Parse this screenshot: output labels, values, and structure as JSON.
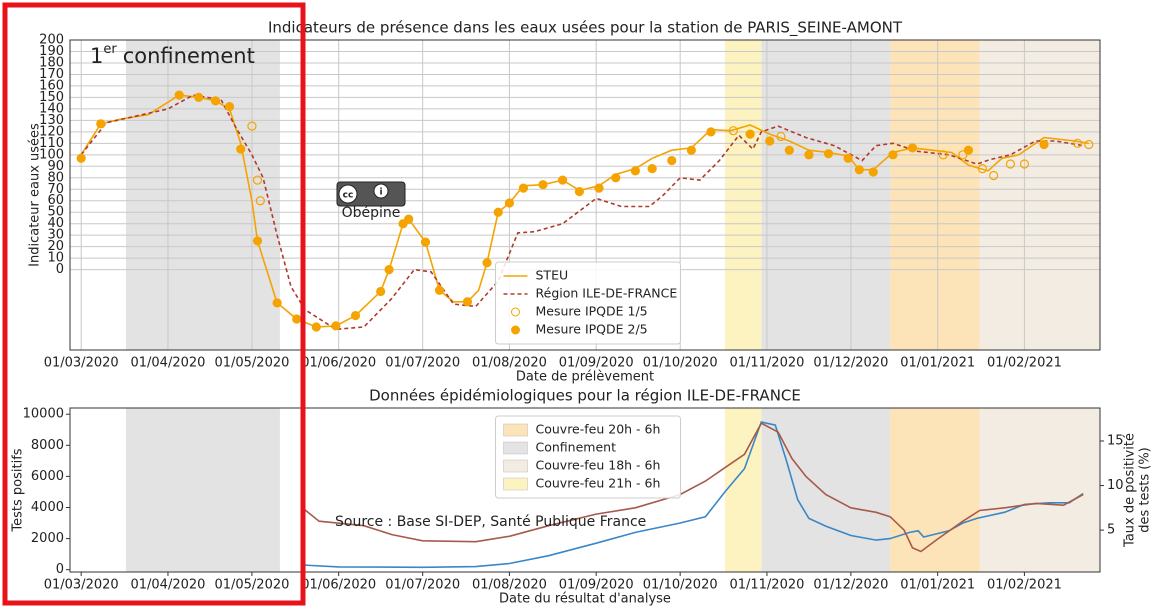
{
  "annotation": {
    "number": "1",
    "superscript": "er",
    "text": "confinement"
  },
  "chart_data": [
    {
      "type": "line",
      "title": "Indicateurs de présence dans les eaux usées pour la station de PARIS_SEINE-AMONT",
      "xlabel": "Date de prélèvement",
      "ylabel": "Indicateur eaux usées",
      "watermark": "Obépine",
      "grid": true,
      "legend": "lower center",
      "xlim": [
        "26/02/2020",
        "28/02/2021"
      ],
      "ylim": [
        -70,
        200
      ],
      "xticks": [
        "01/03/2020",
        "01/04/2020",
        "01/05/2020",
        "01/06/2020",
        "01/07/2020",
        "01/08/2020",
        "01/09/2020",
        "01/10/2020",
        "01/11/2020",
        "01/12/2020",
        "01/01/2021",
        "01/02/2021"
      ],
      "yticks": [
        0,
        10,
        20,
        30,
        40,
        50,
        60,
        70,
        80,
        90,
        100,
        110,
        120,
        130,
        140,
        150,
        160,
        170,
        180,
        190,
        200
      ],
      "shading": [
        {
          "color": "#fde3b8",
          "spans": [
            [
              "15/12/2020",
              "16/01/2021"
            ]
          ]
        },
        {
          "color": "#e3e3e3",
          "spans": [
            [
              "17/03/2020",
              "11/05/2020"
            ],
            [
              "30/10/2020",
              "15/12/2020"
            ]
          ]
        },
        {
          "color": "#f3ece2",
          "spans": [
            [
              "16/01/2021",
              "28/02/2021"
            ]
          ]
        },
        {
          "color": "#fcf3c0",
          "spans": [
            [
              "17/10/2020",
              "30/10/2020"
            ]
          ]
        }
      ],
      "series": [
        {
          "name": "STEU",
          "type": "line",
          "color": "#f5a300",
          "x": [
            "01/03/2020",
            "08/03/2020",
            "15/03/2020",
            "25/03/2020",
            "05/04/2020",
            "12/04/2020",
            "18/04/2020",
            "23/04/2020",
            "27/04/2020",
            "01/05/2020",
            "03/05/2020",
            "10/05/2020",
            "17/05/2020",
            "24/05/2020",
            "31/05/2020",
            "07/06/2020",
            "16/06/2020",
            "19/06/2020",
            "24/06/2020",
            "26/06/2020",
            "02/07/2020",
            "07/07/2020",
            "12/07/2020",
            "17/07/2020",
            "21/07/2020",
            "24/07/2020",
            "28/07/2020",
            "01/08/2020",
            "06/08/2020",
            "13/08/2020",
            "20/08/2020",
            "26/08/2020",
            "02/09/2020",
            "08/09/2020",
            "15/09/2020",
            "21/09/2020",
            "28/09/2020",
            "05/10/2020",
            "12/10/2020",
            "19/10/2020",
            "26/10/2020",
            "02/11/2020",
            "09/11/2020",
            "16/11/2020",
            "23/11/2020",
            "30/11/2020",
            "04/12/2020",
            "09/12/2020",
            "16/12/2020",
            "23/12/2020",
            "30/12/2020",
            "06/01/2021",
            "12/01/2021",
            "19/01/2021",
            "24/01/2021",
            "30/01/2021",
            "08/02/2021",
            "19/02/2021",
            "24/02/2021"
          ],
          "values": [
            100,
            127,
            131,
            135,
            152,
            150,
            147,
            140,
            110,
            60,
            25,
            -29,
            -43,
            -50,
            -49,
            -40,
            -19,
            0,
            40,
            44,
            24,
            -18,
            -28,
            -28,
            -18,
            6,
            50,
            58,
            73,
            74,
            78,
            69,
            73,
            83,
            88,
            97,
            104,
            106,
            122,
            121,
            126,
            118,
            112,
            104,
            102,
            99,
            87,
            87,
            102,
            106,
            104,
            102,
            91,
            86,
            97,
            100,
            115,
            112,
            110
          ]
        },
        {
          "name": "Région ILE-DE-FRANCE",
          "type": "line",
          "dashed": true,
          "color": "#b03a2e",
          "x": [
            "01/03/2020",
            "10/03/2020",
            "01/04/2020",
            "10/04/2020",
            "20/04/2020",
            "25/04/2020",
            "01/05/2020",
            "05/05/2020",
            "10/05/2020",
            "15/05/2020",
            "20/05/2020",
            "31/05/2020",
            "10/06/2020",
            "20/06/2020",
            "28/06/2020",
            "04/07/2020",
            "12/07/2020",
            "20/07/2020",
            "28/07/2020",
            "04/08/2020",
            "10/08/2020",
            "20/08/2020",
            "01/09/2020",
            "10/09/2020",
            "20/09/2020",
            "25/09/2020",
            "01/10/2020",
            "08/10/2020",
            "15/10/2020",
            "22/10/2020",
            "27/10/2020",
            "30/10/2020",
            "05/11/2020",
            "15/11/2020",
            "25/11/2020",
            "05/12/2020",
            "10/12/2020",
            "16/12/2020",
            "25/12/2020",
            "05/01/2021",
            "15/01/2021",
            "20/01/2021",
            "27/01/2021",
            "05/02/2021",
            "12/02/2021",
            "22/02/2021"
          ],
          "values": [
            100,
            128,
            140,
            152,
            148,
            125,
            100,
            80,
            30,
            -15,
            -35,
            -52,
            -50,
            -25,
            0,
            -2,
            -30,
            -32,
            -10,
            32,
            33,
            40,
            62,
            55,
            55,
            65,
            80,
            78,
            95,
            117,
            105,
            120,
            125,
            115,
            108,
            95,
            108,
            110,
            103,
            100,
            92,
            96,
            100,
            112,
            112,
            108
          ]
        },
        {
          "name": "Mesure IPQDE 1/5",
          "type": "scatter",
          "marker": "open",
          "color": "#f5a300",
          "x": [
            "01/05/2020",
            "03/05/2020",
            "04/05/2020",
            "20/10/2020",
            "06/11/2020",
            "03/01/2021",
            "10/01/2021",
            "17/01/2021",
            "21/01/2021",
            "27/01/2021",
            "01/02/2021",
            "20/02/2021",
            "24/02/2021"
          ],
          "values": [
            125,
            78,
            60,
            121,
            116,
            100,
            100,
            88,
            82,
            92,
            92,
            110,
            109
          ]
        },
        {
          "name": "Mesure IPQDE 2/5",
          "type": "scatter",
          "marker": "filled",
          "color": "#f5a300",
          "x": [
            "01/03/2020",
            "08/03/2020",
            "05/04/2020",
            "12/04/2020",
            "18/04/2020",
            "23/04/2020",
            "27/04/2020",
            "03/05/2020",
            "10/05/2020",
            "17/05/2020",
            "24/05/2020",
            "31/05/2020",
            "07/06/2020",
            "16/06/2020",
            "19/06/2020",
            "24/06/2020",
            "26/06/2020",
            "02/07/2020",
            "07/07/2020",
            "17/07/2020",
            "24/07/2020",
            "28/07/2020",
            "01/08/2020",
            "06/08/2020",
            "13/08/2020",
            "20/08/2020",
            "26/08/2020",
            "02/09/2020",
            "08/09/2020",
            "15/09/2020",
            "21/09/2020",
            "28/09/2020",
            "05/10/2020",
            "12/10/2020",
            "26/10/2020",
            "02/11/2020",
            "09/11/2020",
            "16/11/2020",
            "23/11/2020",
            "30/11/2020",
            "04/12/2020",
            "09/12/2020",
            "16/12/2020",
            "23/12/2020",
            "12/01/2021",
            "08/02/2021"
          ],
          "values": [
            97,
            127,
            152,
            150,
            147,
            142,
            105,
            25,
            -29,
            -43,
            -50,
            -49,
            -40,
            -19,
            0,
            40,
            44,
            24,
            -18,
            -28,
            6,
            50,
            58,
            71,
            74,
            78,
            68,
            71,
            80,
            86,
            88,
            95,
            104,
            120,
            118,
            112,
            104,
            100,
            101,
            97,
            87,
            85,
            100,
            106,
            104,
            109
          ]
        }
      ]
    },
    {
      "type": "line",
      "title": "Données épidémiologiques pour la région ILE-DE-FRANCE",
      "xlabel": "Date du résultat d'analyse",
      "ylabel": "Tests positifs",
      "y2label": [
        "Taux de positivité",
        "des tests (%)"
      ],
      "source": "Source : Base SI-DEP, Santé Publique France",
      "grid": false,
      "legend": "upper center",
      "xlim": [
        "26/02/2020",
        "28/02/2021"
      ],
      "ylim": [
        -150,
        10400
      ],
      "y2lim": [
        0.3,
        18.7
      ],
      "xticks": [
        "01/03/2020",
        "01/04/2020",
        "01/05/2020",
        "01/06/2020",
        "01/07/2020",
        "01/08/2020",
        "01/09/2020",
        "01/10/2020",
        "01/11/2020",
        "01/12/2020",
        "01/01/2021",
        "01/02/2021"
      ],
      "yticks": [
        0,
        2000,
        4000,
        6000,
        8000,
        10000
      ],
      "y2ticks": [
        5,
        10,
        15
      ],
      "shading": [
        {
          "name": "Couvre-feu 20h - 6h",
          "color": "#fde3b8",
          "spans": [
            [
              "15/12/2020",
              "16/01/2021"
            ]
          ]
        },
        {
          "name": "Confinement",
          "color": "#e3e3e3",
          "spans": [
            [
              "17/03/2020",
              "11/05/2020"
            ],
            [
              "30/10/2020",
              "15/12/2020"
            ]
          ]
        },
        {
          "name": "Couvre-feu 18h - 6h",
          "color": "#f3ece2",
          "spans": [
            [
              "16/01/2021",
              "28/02/2021"
            ]
          ]
        },
        {
          "name": "Couvre-feu 21h - 6h",
          "color": "#fcf3c0",
          "spans": [
            [
              "17/10/2020",
              "30/10/2020"
            ]
          ]
        }
      ],
      "series": [
        {
          "type": "line",
          "color": "#3a87c8",
          "x": [
            "19/05/2020",
            "01/06/2020",
            "01/07/2020",
            "20/07/2020",
            "01/08/2020",
            "15/08/2020",
            "01/09/2020",
            "15/09/2020",
            "01/10/2020",
            "10/10/2020",
            "17/10/2020",
            "24/10/2020",
            "28/10/2020",
            "30/10/2020",
            "04/11/2020",
            "08/11/2020",
            "12/11/2020",
            "16/11/2020",
            "22/11/2020",
            "01/12/2020",
            "10/12/2020",
            "15/12/2020",
            "22/12/2020",
            "25/12/2020",
            "27/12/2020",
            "05/01/2021",
            "10/01/2021",
            "15/01/2021",
            "25/01/2021",
            "01/02/2021",
            "10/02/2021",
            "17/02/2021",
            "22/02/2021"
          ],
          "values": [
            300,
            180,
            150,
            200,
            400,
            900,
            1700,
            2400,
            3000,
            3400,
            5000,
            6500,
            8500,
            9500,
            9300,
            7000,
            4500,
            3300,
            2800,
            2200,
            1900,
            2000,
            2400,
            2500,
            2100,
            2500,
            3000,
            3300,
            3700,
            4200,
            4300,
            4300,
            4900
          ]
        },
        {
          "type": "line",
          "axis": "y2",
          "color": "#a85a4a",
          "x": [
            "19/05/2020",
            "25/05/2020",
            "10/06/2020",
            "20/06/2020",
            "01/07/2020",
            "20/07/2020",
            "01/08/2020",
            "15/08/2020",
            "01/09/2020",
            "15/09/2020",
            "01/10/2020",
            "10/10/2020",
            "17/10/2020",
            "24/10/2020",
            "30/10/2020",
            "05/11/2020",
            "10/11/2020",
            "15/11/2020",
            "22/11/2020",
            "01/12/2020",
            "10/12/2020",
            "15/12/2020",
            "20/12/2020",
            "23/12/2020",
            "26/12/2020",
            "01/01/2021",
            "10/01/2021",
            "16/01/2021",
            "25/01/2021",
            "05/02/2021",
            "15/02/2021",
            "22/02/2021"
          ],
          "values": [
            7.5,
            6,
            5.5,
            4.5,
            3.8,
            3.7,
            4.3,
            5.5,
            6.8,
            7.5,
            9,
            10.5,
            12,
            13.5,
            17,
            16,
            13,
            11,
            9,
            7.5,
            7,
            6.5,
            5,
            3,
            2.6,
            4,
            6,
            7.2,
            7.5,
            8,
            7.8,
            9
          ]
        }
      ]
    }
  ]
}
